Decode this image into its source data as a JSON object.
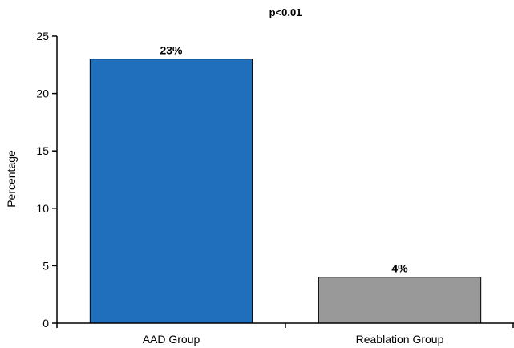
{
  "chart_data": {
    "type": "bar",
    "categories": [
      "AAD Group",
      "Reablation Group"
    ],
    "values": [
      23,
      4
    ],
    "data_labels": [
      "23%",
      "4%"
    ],
    "colors": [
      "#1f6fbd",
      "#999999"
    ],
    "title": "",
    "annotation": "p<0.01",
    "xlabel": "",
    "ylabel": "Percentage",
    "ylim": [
      0,
      25
    ],
    "yticks": [
      "0",
      "5",
      "10",
      "15",
      "20",
      "25"
    ],
    "grid": false,
    "legend": "none"
  }
}
